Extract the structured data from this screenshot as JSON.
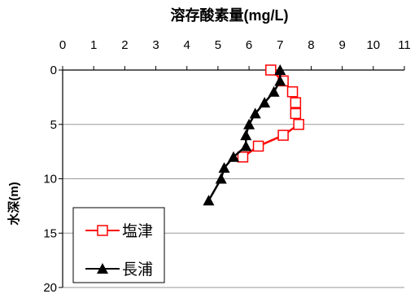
{
  "chart_data": {
    "type": "line",
    "title": "溶存酸素量(mg/L)",
    "xlabel": "",
    "ylabel": "水深(m)",
    "x_axis_position": "top",
    "y_axis_inverted": true,
    "xlim": [
      0,
      11
    ],
    "ylim": [
      20,
      0
    ],
    "x_ticks": [
      "0",
      "1",
      "2",
      "3",
      "4",
      "5",
      "6",
      "7",
      "8",
      "9",
      "10",
      "11"
    ],
    "y_ticks": [
      "0",
      "5",
      "10",
      "15",
      "20"
    ],
    "grid": "horizontal",
    "legend_position": "bottom-left",
    "series": [
      {
        "name": "塩津",
        "color": "#ff0000",
        "marker": "open-square",
        "x": [
          6.7,
          7.1,
          7.4,
          7.5,
          7.5,
          7.6,
          7.1,
          6.3,
          5.8
        ],
        "y": [
          0,
          1,
          2,
          3,
          4,
          5,
          6,
          7,
          8
        ]
      },
      {
        "name": "長浦",
        "color": "#000000",
        "marker": "filled-triangle",
        "x": [
          7.0,
          7.0,
          6.8,
          6.5,
          6.2,
          6.0,
          5.9,
          5.9,
          5.5,
          5.2,
          5.1,
          4.7
        ],
        "y": [
          0,
          1,
          2,
          3,
          4,
          5,
          6,
          7,
          8,
          9,
          10,
          12
        ]
      }
    ]
  }
}
